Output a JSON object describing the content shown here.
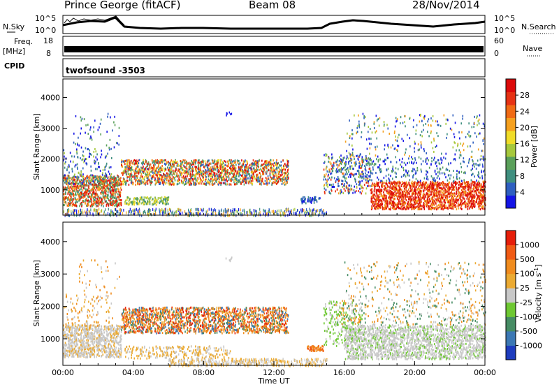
{
  "header": {
    "station": "Prince George (fitACF)",
    "beam": "Beam 08",
    "date": "28/Nov/2014"
  },
  "top_panels": {
    "nsky_label": "N.Sky",
    "nsky_ticks": [
      "10^5",
      "10^0"
    ],
    "nsearch_label": "N.Search",
    "nsearch_ticks": [
      "10^5",
      "10^0"
    ],
    "freq_label_line1": "Freq.",
    "freq_label_line2": "[MHz]",
    "freq_ticks": [
      "18",
      "8"
    ],
    "nave_label": "Nave",
    "nave_ticks": [
      "60",
      "0"
    ],
    "cpid_label": "CPID",
    "cpid_value": "twofsound -3503"
  },
  "chart_data": [
    {
      "type": "heatmap",
      "parameter": "power",
      "ylabel": "Slant Range [km]",
      "xlabel": "",
      "yticks": [
        "1000",
        "2000",
        "3000",
        "4000"
      ],
      "ylim": [
        180,
        4600
      ],
      "xlim_hours": [
        0,
        24
      ],
      "colorbar_label": "Power [dB]",
      "colorbar_ticks": [
        "4",
        "8",
        "12",
        "16",
        "20",
        "24",
        "28"
      ],
      "colorbar_colors": [
        "#1414e6",
        "#2f5fc0",
        "#3f8f7f",
        "#5aa05a",
        "#a6c83c",
        "#f0dc28",
        "#f5a01e",
        "#f06a14",
        "#e63214",
        "#dc0a0a"
      ]
    },
    {
      "type": "heatmap",
      "parameter": "velocity",
      "ylabel": "Slant Range [km]",
      "xlabel": "Time UT",
      "xticks": [
        "00:00",
        "04:00",
        "08:00",
        "12:00",
        "16:00",
        "20:00",
        "00:00"
      ],
      "yticks": [
        "1000",
        "2000",
        "3000",
        "4000"
      ],
      "ylim": [
        180,
        4600
      ],
      "xlim_hours": [
        0,
        24
      ],
      "colorbar_label": "Velocity [m s",
      "colorbar_label_sup": "-1",
      "colorbar_label_close": "]",
      "colorbar_ticks": [
        "1000",
        "500",
        "100",
        "25",
        "-25",
        "-100",
        "-500",
        "-1000"
      ],
      "colorbar_colors": [
        "#1e3cbe",
        "#3c78b4",
        "#468c64",
        "#6ec832",
        "#c8c8c8",
        "#ebaa32",
        "#f08c1e",
        "#f05a14",
        "#e61e0a"
      ]
    }
  ]
}
